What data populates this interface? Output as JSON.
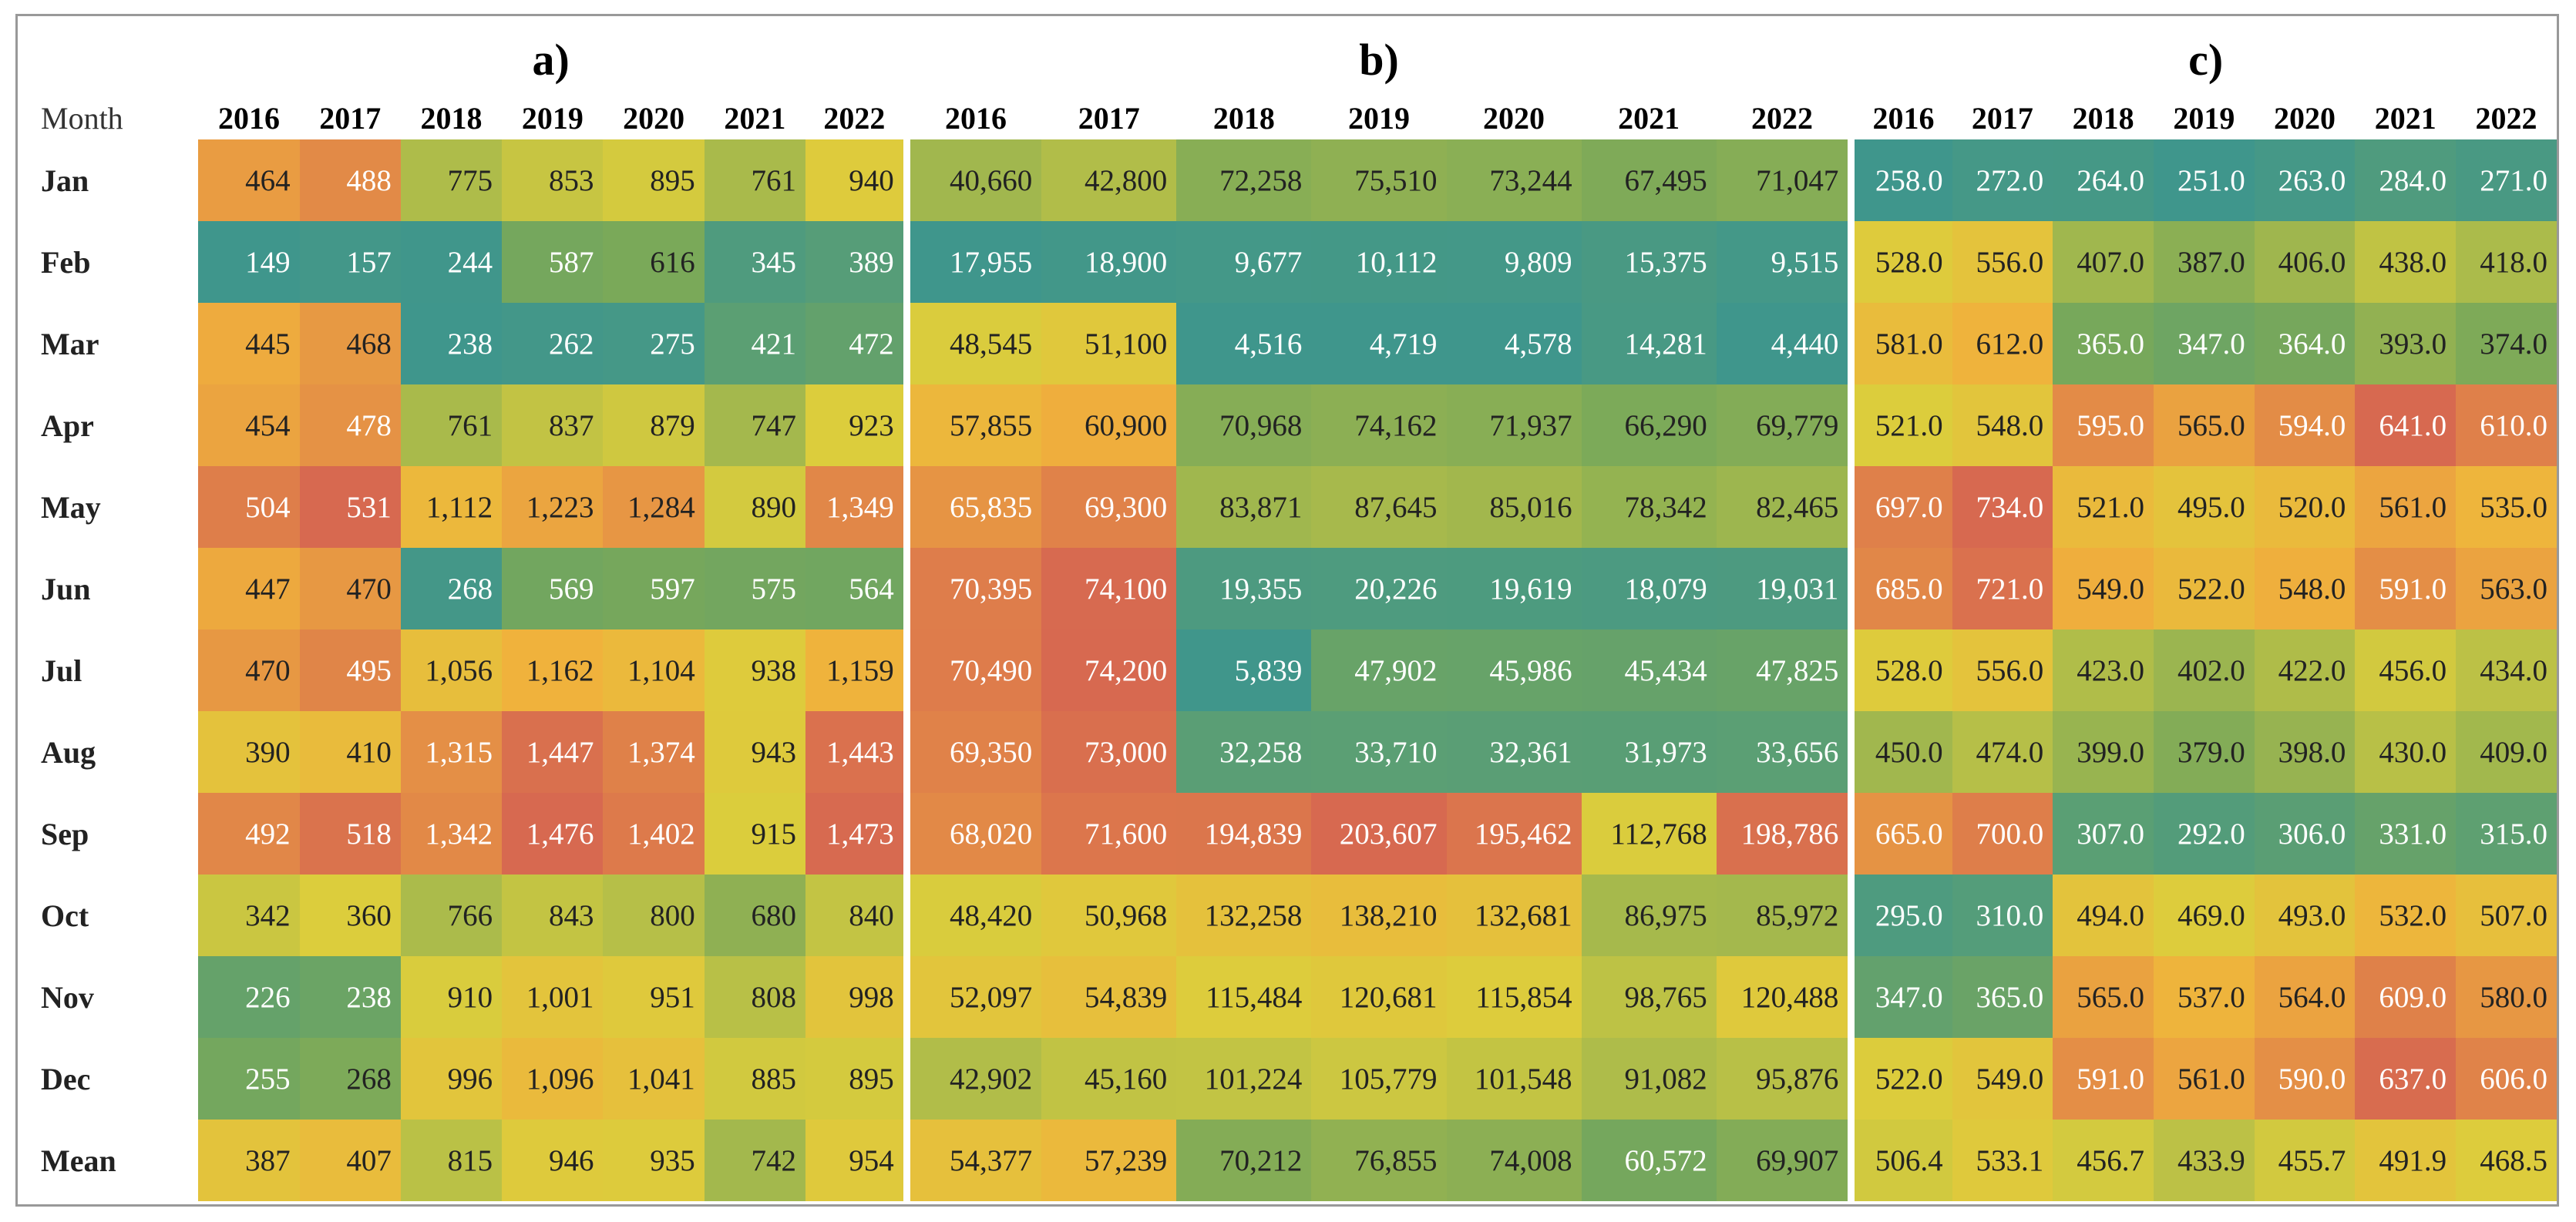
{
  "month_header": "Month",
  "months": [
    "Jan",
    "Feb",
    "Mar",
    "Apr",
    "May",
    "Jun",
    "Jul",
    "Aug",
    "Sep",
    "Oct",
    "Nov",
    "Dec",
    "Mean"
  ],
  "panels": [
    {
      "label": "a)",
      "years": [
        "2016",
        "2017",
        "2018",
        "2019",
        "2020",
        "2021",
        "2022"
      ],
      "rows": [
        [
          "464",
          "488",
          "775",
          "853",
          "895",
          "761",
          "940"
        ],
        [
          "149",
          "157",
          "244",
          "587",
          "616",
          "345",
          "389"
        ],
        [
          "445",
          "468",
          "238",
          "262",
          "275",
          "421",
          "472"
        ],
        [
          "454",
          "478",
          "761",
          "837",
          "879",
          "747",
          "923"
        ],
        [
          "504",
          "531",
          "1,112",
          "1,223",
          "1,284",
          "890",
          "1,349"
        ],
        [
          "447",
          "470",
          "268",
          "569",
          "597",
          "575",
          "564"
        ],
        [
          "470",
          "495",
          "1,056",
          "1,162",
          "1,104",
          "938",
          "1,159"
        ],
        [
          "390",
          "410",
          "1,315",
          "1,447",
          "1,374",
          "943",
          "1,443"
        ],
        [
          "492",
          "518",
          "1,342",
          "1,476",
          "1,402",
          "915",
          "1,473"
        ],
        [
          "342",
          "360",
          "766",
          "843",
          "800",
          "680",
          "840"
        ],
        [
          "226",
          "238",
          "910",
          "1,001",
          "951",
          "808",
          "998"
        ],
        [
          "255",
          "268",
          "996",
          "1,096",
          "1,041",
          "885",
          "895"
        ],
        [
          "387",
          "407",
          "815",
          "946",
          "935",
          "742",
          "954"
        ]
      ]
    },
    {
      "label": "b)",
      "years": [
        "2016",
        "2017",
        "2018",
        "2019",
        "2020",
        "2021",
        "2022"
      ],
      "rows": [
        [
          "40,660",
          "42,800",
          "72,258",
          "75,510",
          "73,244",
          "67,495",
          "71,047"
        ],
        [
          "17,955",
          "18,900",
          "9,677",
          "10,112",
          "9,809",
          "15,375",
          "9,515"
        ],
        [
          "48,545",
          "51,100",
          "4,516",
          "4,719",
          "4,578",
          "14,281",
          "4,440"
        ],
        [
          "57,855",
          "60,900",
          "70,968",
          "74,162",
          "71,937",
          "66,290",
          "69,779"
        ],
        [
          "65,835",
          "69,300",
          "83,871",
          "87,645",
          "85,016",
          "78,342",
          "82,465"
        ],
        [
          "70,395",
          "74,100",
          "19,355",
          "20,226",
          "19,619",
          "18,079",
          "19,031"
        ],
        [
          "70,490",
          "74,200",
          "5,839",
          "47,902",
          "45,986",
          "45,434",
          "47,825"
        ],
        [
          "69,350",
          "73,000",
          "32,258",
          "33,710",
          "32,361",
          "31,973",
          "33,656"
        ],
        [
          "68,020",
          "71,600",
          "194,839",
          "203,607",
          "195,462",
          "112,768",
          "198,786"
        ],
        [
          "48,420",
          "50,968",
          "132,258",
          "138,210",
          "132,681",
          "86,975",
          "85,972"
        ],
        [
          "52,097",
          "54,839",
          "115,484",
          "120,681",
          "115,854",
          "98,765",
          "120,488"
        ],
        [
          "42,902",
          "45,160",
          "101,224",
          "105,779",
          "101,548",
          "91,082",
          "95,876"
        ],
        [
          "54,377",
          "57,239",
          "70,212",
          "76,855",
          "74,008",
          "60,572",
          "69,907"
        ]
      ]
    },
    {
      "label": "c)",
      "years": [
        "2016",
        "2017",
        "2018",
        "2019",
        "2020",
        "2021",
        "2022"
      ],
      "rows": [
        [
          "258.0",
          "272.0",
          "264.0",
          "251.0",
          "263.0",
          "284.0",
          "271.0"
        ],
        [
          "528.0",
          "556.0",
          "407.0",
          "387.0",
          "406.0",
          "438.0",
          "418.0"
        ],
        [
          "581.0",
          "612.0",
          "365.0",
          "347.0",
          "364.0",
          "393.0",
          "374.0"
        ],
        [
          "521.0",
          "548.0",
          "595.0",
          "565.0",
          "594.0",
          "641.0",
          "610.0"
        ],
        [
          "697.0",
          "734.0",
          "521.0",
          "495.0",
          "520.0",
          "561.0",
          "535.0"
        ],
        [
          "685.0",
          "721.0",
          "549.0",
          "522.0",
          "548.0",
          "591.0",
          "563.0"
        ],
        [
          "528.0",
          "556.0",
          "423.0",
          "402.0",
          "422.0",
          "456.0",
          "434.0"
        ],
        [
          "450.0",
          "474.0",
          "399.0",
          "379.0",
          "398.0",
          "430.0",
          "409.0"
        ],
        [
          "665.0",
          "700.0",
          "307.0",
          "292.0",
          "306.0",
          "331.0",
          "315.0"
        ],
        [
          "295.0",
          "310.0",
          "494.0",
          "469.0",
          "493.0",
          "532.0",
          "507.0"
        ],
        [
          "347.0",
          "365.0",
          "565.0",
          "537.0",
          "564.0",
          "609.0",
          "580.0"
        ],
        [
          "522.0",
          "549.0",
          "591.0",
          "561.0",
          "590.0",
          "637.0",
          "606.0"
        ],
        [
          "506.4",
          "533.1",
          "456.7",
          "433.9",
          "455.7",
          "491.9",
          "468.5"
        ]
      ]
    }
  ]
}
